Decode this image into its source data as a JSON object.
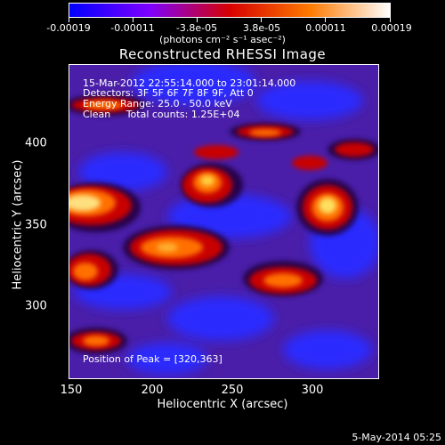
{
  "colorbar": {
    "tick_labels": [
      "-0.00019",
      "-0.00011",
      "-3.8e-05",
      "3.8e-05",
      "0.00011",
      "0.00019"
    ],
    "unit": "(photons cm⁻² s⁻¹ asec⁻²)",
    "colors": [
      "#0000ff",
      "#7e00ff",
      "#d60000",
      "#ff7a00",
      "#ffffff"
    ]
  },
  "title": "Reconstructed RHESSI Image",
  "annotations": {
    "time": "15-Mar-2012 22:55:14.000 to 23:01:14.000",
    "detectors": "Detectors: 3F 5F 6F 7F 8F 9F, Att 0",
    "energy": "Energy Range: 25.0 - 50.0 keV",
    "clean": "Clean     Total counts: 1.25E+04",
    "peak": "Position of Peak = [320,363]"
  },
  "axes": {
    "xlabel": "Heliocentric X (arcsec)",
    "ylabel": "Heliocentric Y (arcsec)",
    "xticks": [
      "150",
      "200",
      "250",
      "300"
    ],
    "yticks": [
      "400",
      "350",
      "300"
    ]
  },
  "footer": "5-May-2014 05:25"
}
